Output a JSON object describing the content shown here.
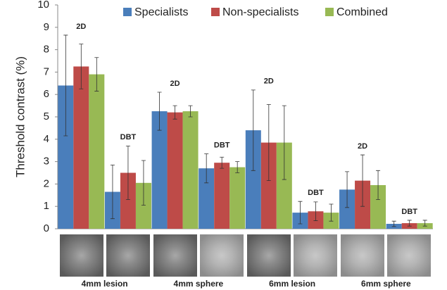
{
  "chart_data": {
    "type": "bar",
    "y_label": "Threshold contrast (%)",
    "categories": [
      "2D",
      "DBT",
      "2D",
      "DBT",
      "2D",
      "DBT",
      "2D",
      "DBT"
    ],
    "groups": [
      "4mm lesion",
      "4mm sphere",
      "6mm lesion",
      "6mm sphere"
    ],
    "series": [
      {
        "name": "Specialists",
        "color": "#4a7ebb",
        "values": [
          6.4,
          1.65,
          5.25,
          2.7,
          4.4,
          0.72,
          1.75,
          0.22
        ],
        "errors": [
          2.25,
          1.2,
          0.85,
          0.65,
          1.8,
          0.5,
          0.8,
          0.12
        ]
      },
      {
        "name": "Non-specialists",
        "color": "#be4b48",
        "values": [
          7.25,
          2.5,
          5.2,
          2.95,
          3.85,
          0.78,
          2.15,
          0.25
        ],
        "errors": [
          1.0,
          1.2,
          0.3,
          0.25,
          1.7,
          0.42,
          1.15,
          0.13
        ]
      },
      {
        "name": "Combined",
        "color": "#98b954",
        "values": [
          6.9,
          2.05,
          5.25,
          2.75,
          3.85,
          0.72,
          1.95,
          0.25
        ],
        "errors": [
          0.75,
          1.0,
          0.25,
          0.25,
          1.65,
          0.38,
          0.65,
          0.13
        ]
      }
    ],
    "ylim": [
      0,
      10
    ],
    "yticks": [
      0,
      1,
      2,
      3,
      4,
      5,
      6,
      7,
      8,
      9,
      10
    ],
    "grid": false
  }
}
